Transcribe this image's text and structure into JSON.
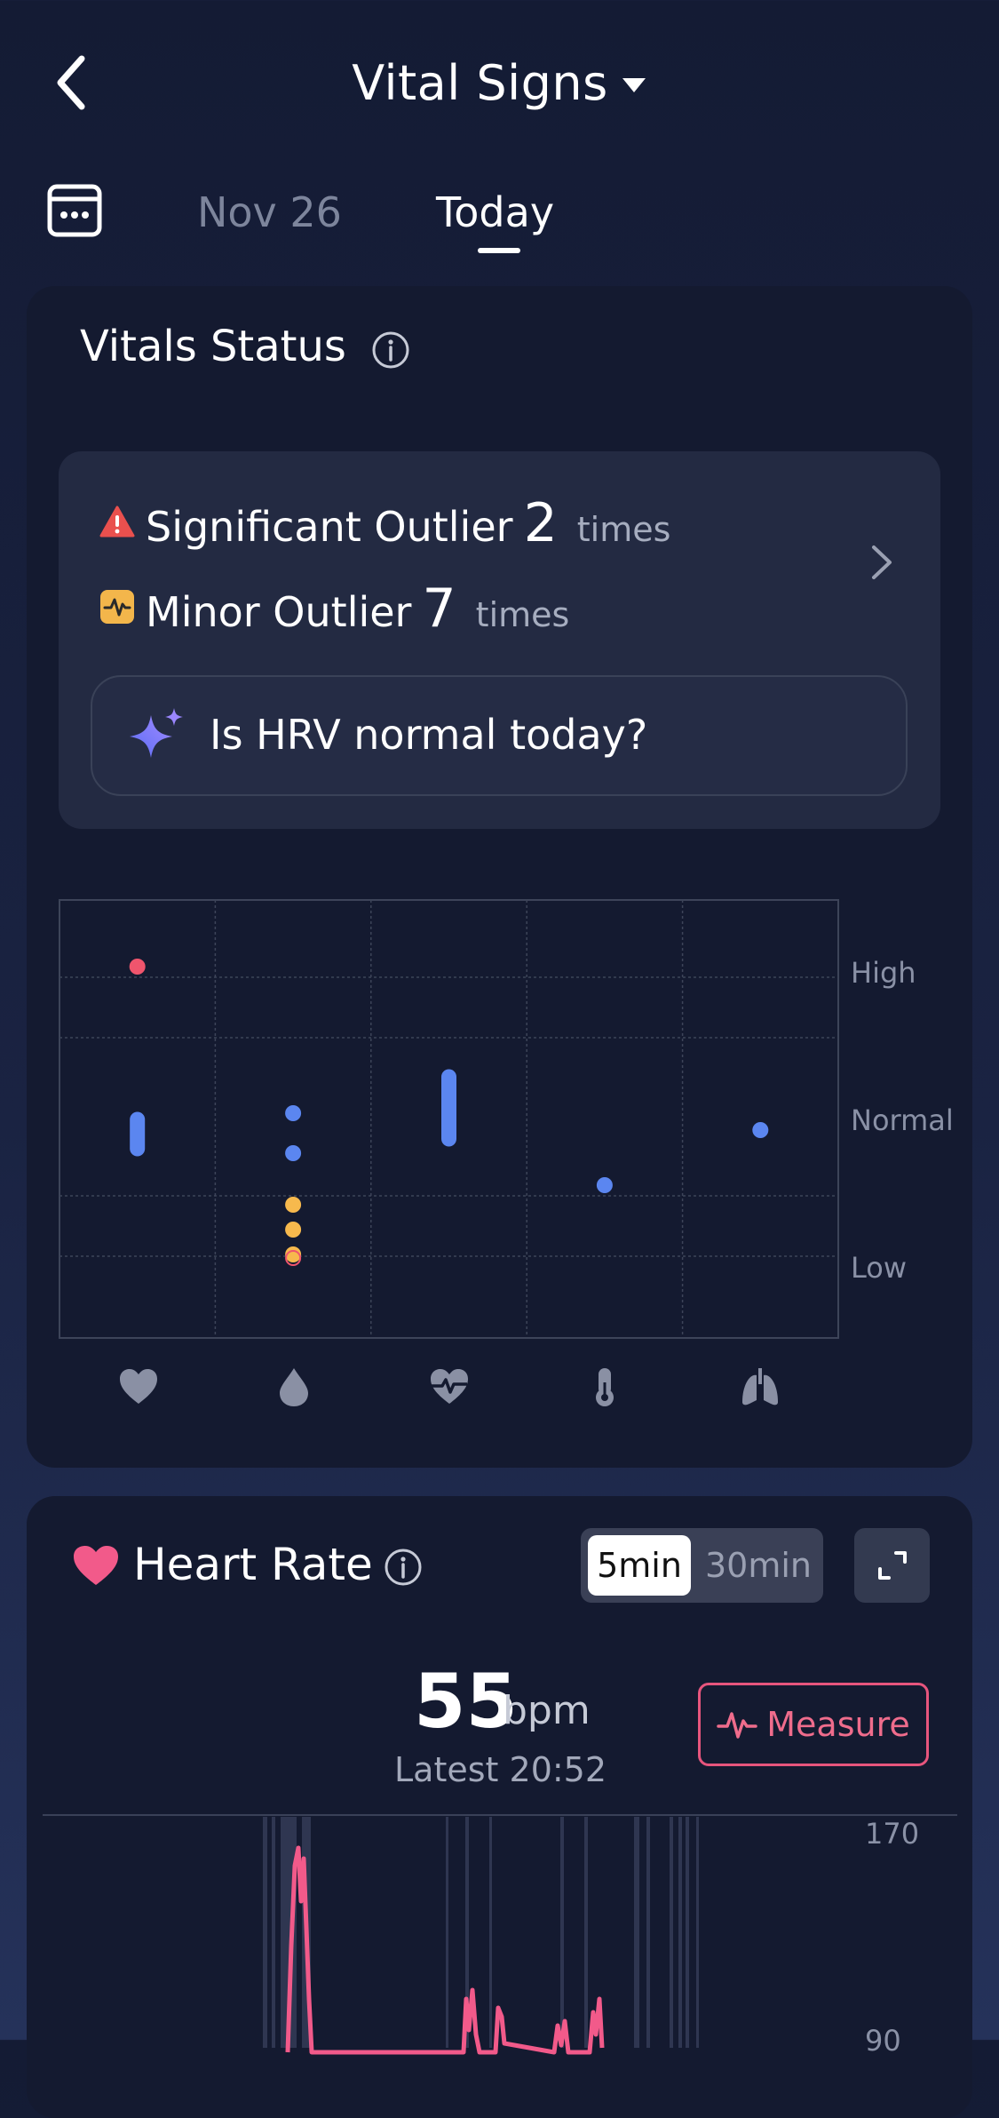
{
  "header": {
    "title": "Vital Signs",
    "date_tabs": [
      {
        "label": "Nov 26",
        "selected": false
      },
      {
        "label": "Today",
        "selected": true
      }
    ]
  },
  "vitals_status": {
    "title": "Vitals Status",
    "significant": {
      "label": "Significant Outlier",
      "count": "2",
      "unit": "times"
    },
    "minor": {
      "label": "Minor Outlier",
      "count": "7",
      "unit": "times"
    },
    "ask_prompt": "Is HRV normal today?",
    "chart_data": {
      "type": "scatter",
      "y_levels": [
        "High",
        "Normal",
        "Low"
      ],
      "categories": [
        "heart-rate",
        "blood-oxygen",
        "hrv",
        "temperature",
        "respiration"
      ],
      "category_icons": [
        "heart-icon",
        "droplet-icon",
        "heart-pulse-icon",
        "thermometer-icon",
        "lungs-icon"
      ],
      "points": [
        {
          "category": 0,
          "level": "High",
          "color": "#f0556d"
        },
        {
          "category": 0,
          "level": "Normal",
          "color": "#5b86f0",
          "range": true
        },
        {
          "category": 1,
          "level": "Normal",
          "color": "#5b86f0"
        },
        {
          "category": 1,
          "level": "Normal",
          "color": "#5b86f0"
        },
        {
          "category": 1,
          "level": "Low",
          "color": "#f7b94d"
        },
        {
          "category": 1,
          "level": "Low",
          "color": "#f7b94d"
        },
        {
          "category": 1,
          "level": "Low",
          "color": "#f7b94d"
        },
        {
          "category": 2,
          "level": "Normal",
          "color": "#5b86f0",
          "range": true
        },
        {
          "category": 3,
          "level": "Normal",
          "color": "#5b86f0"
        },
        {
          "category": 4,
          "level": "Normal",
          "color": "#5b86f0"
        }
      ]
    }
  },
  "heart_rate": {
    "title": "Heart Rate",
    "intervals": [
      {
        "label": "5min",
        "selected": true
      },
      {
        "label": "30min",
        "selected": false
      }
    ],
    "value": "55",
    "unit": "bpm",
    "latest": "Latest 20:52",
    "measure_label": "Measure",
    "y_max_label": "170",
    "y_mid_label": "90"
  },
  "colors": {
    "accent_pink": "#ef6c8c",
    "outlier_red": "#f0556d",
    "minor_yellow": "#f7b94d",
    "normal_blue": "#5b86f0"
  }
}
